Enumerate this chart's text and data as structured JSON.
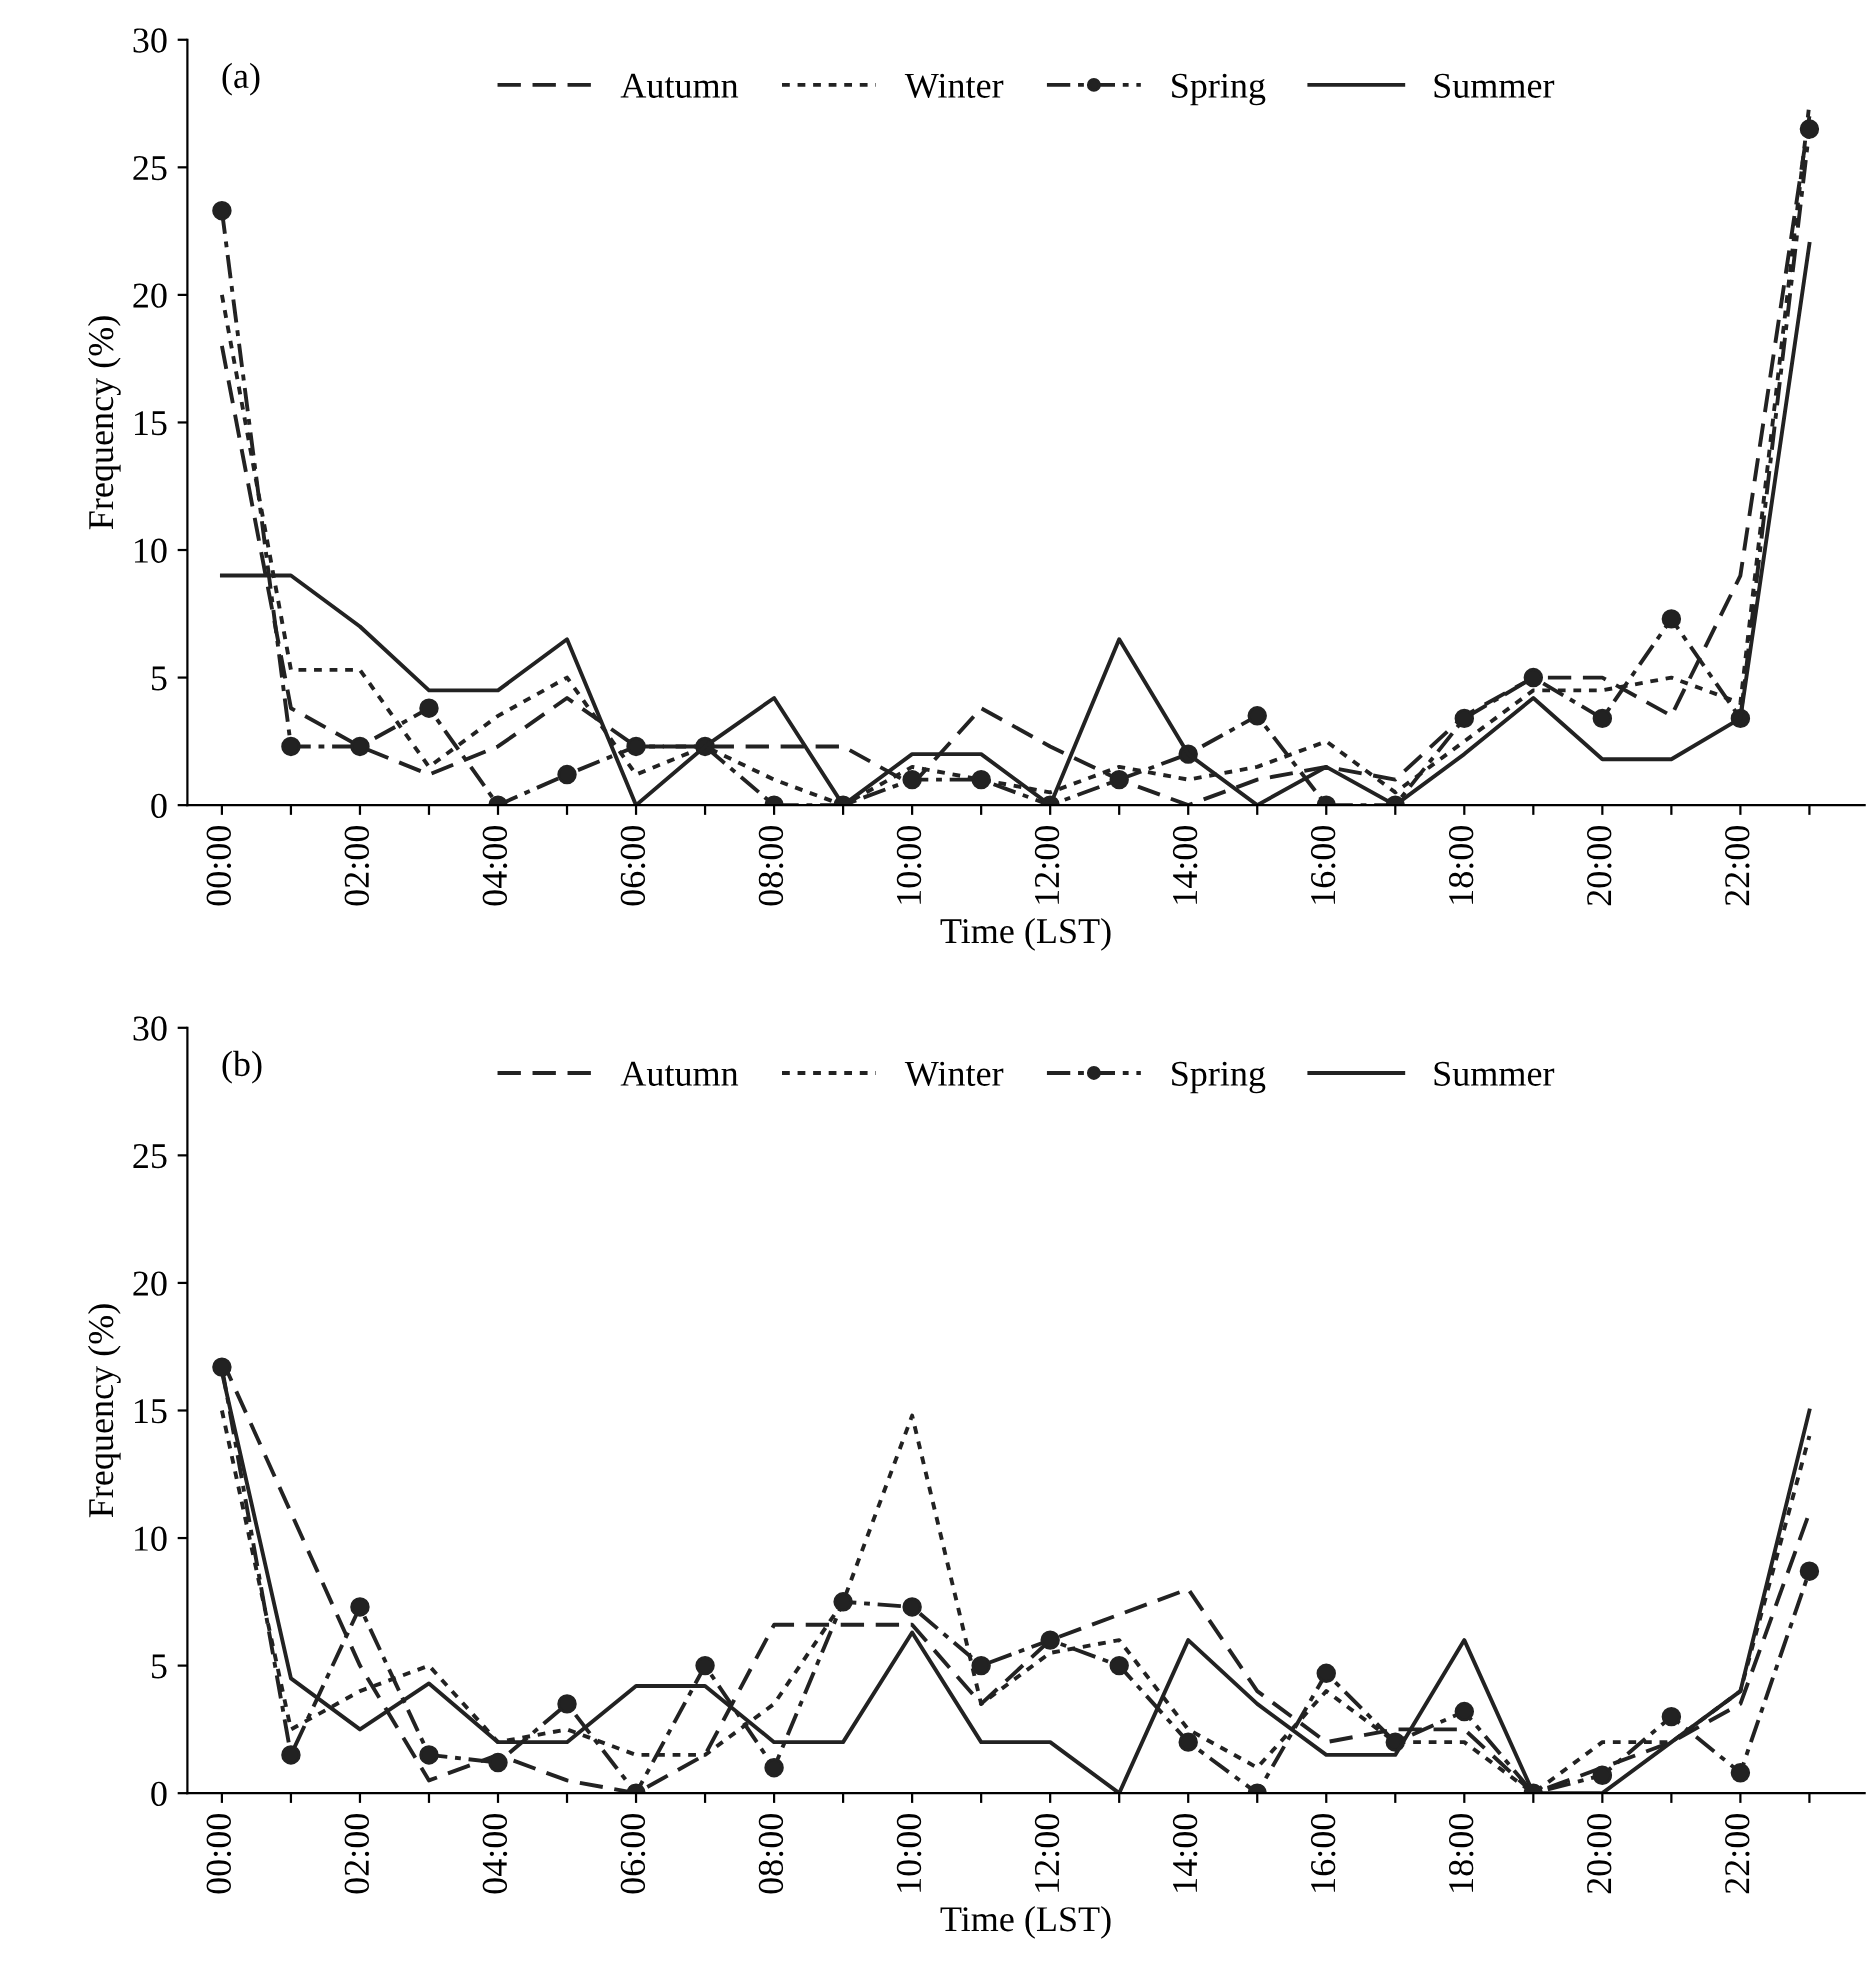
{
  "chart_data": [
    {
      "type": "line",
      "annotations": [
        "(a)"
      ],
      "xlabel": "Time (LST)",
      "ylabel": "Frequency (%)",
      "x": [
        0,
        1,
        2,
        3,
        4,
        5,
        6,
        7,
        8,
        9,
        10,
        11,
        12,
        13,
        14,
        15,
        16,
        17,
        18,
        19,
        20,
        21,
        22,
        23
      ],
      "xlim": [
        -0.5,
        23.8
      ],
      "ylim": [
        0,
        30
      ],
      "yticks": [
        0,
        5,
        10,
        15,
        20,
        25,
        30
      ],
      "xticks": [
        {
          "value": 0,
          "label": "00:00"
        },
        {
          "value": 1,
          "label": null
        },
        {
          "value": 2,
          "label": "02:00"
        },
        {
          "value": 3,
          "label": null
        },
        {
          "value": 4,
          "label": "04:00"
        },
        {
          "value": 5,
          "label": null
        },
        {
          "value": 6,
          "label": "06:00"
        },
        {
          "value": 7,
          "label": null
        },
        {
          "value": 8,
          "label": "08:00"
        },
        {
          "value": 9,
          "label": null
        },
        {
          "value": 10,
          "label": "10:00"
        },
        {
          "value": 11,
          "label": null
        },
        {
          "value": 12,
          "label": "12:00"
        },
        {
          "value": 13,
          "label": null
        },
        {
          "value": 14,
          "label": "14:00"
        },
        {
          "value": 15,
          "label": null
        },
        {
          "value": 16,
          "label": "16:00"
        },
        {
          "value": 17,
          "label": null
        },
        {
          "value": 18,
          "label": "18:00"
        },
        {
          "value": 19,
          "label": null
        },
        {
          "value": 20,
          "label": "20:00"
        },
        {
          "value": 21,
          "label": null
        },
        {
          "value": 22,
          "label": "22:00"
        },
        {
          "value": 23,
          "label": null
        }
      ],
      "grid": false,
      "legend": "top",
      "series": [
        {
          "name": "Autumn",
          "color": "#222222",
          "line_style": "dashed",
          "marker": "none",
          "values": [
            18,
            3.8,
            2.3,
            1.2,
            2.3,
            4.2,
            2.3,
            2.3,
            2.3,
            2.3,
            0.8,
            3.8,
            2.3,
            1,
            0,
            1,
            1.5,
            1,
            3.5,
            5,
            5,
            3.5,
            9,
            27
          ]
        },
        {
          "name": "Winter",
          "color": "#222222",
          "line_style": "dotted",
          "marker": "none",
          "values": [
            20,
            5.3,
            5.3,
            1.5,
            3.5,
            5,
            1.2,
            2.3,
            1,
            0,
            1.5,
            1,
            0.5,
            1.5,
            1,
            1.5,
            2.5,
            0.5,
            2.5,
            4.5,
            4.5,
            5,
            4,
            27.5
          ]
        },
        {
          "name": "Spring",
          "color": "#222222",
          "line_style": "dashdot",
          "marker": "circle",
          "values": [
            23.3,
            2.3,
            2.3,
            3.8,
            0,
            1.2,
            2.3,
            2.3,
            0,
            0,
            1,
            1,
            0,
            1,
            2,
            3.5,
            0,
            0,
            3.4,
            5,
            3.4,
            7.3,
            3.4,
            26.5
          ]
        },
        {
          "name": "Summer",
          "color": "#222222",
          "line_style": "solid",
          "marker": "none",
          "values": [
            9,
            9,
            7,
            4.5,
            4.5,
            6.5,
            0,
            2.3,
            4.2,
            0,
            2,
            2,
            0,
            6.5,
            2,
            0,
            1.5,
            0,
            2,
            4.2,
            1.8,
            1.8,
            3.4,
            22
          ]
        }
      ]
    },
    {
      "type": "line",
      "annotations": [
        "(b)"
      ],
      "xlabel": "Time (LST)",
      "ylabel": "Frequency (%)",
      "x": [
        0,
        1,
        2,
        3,
        4,
        5,
        6,
        7,
        8,
        9,
        10,
        11,
        12,
        13,
        14,
        15,
        16,
        17,
        18,
        19,
        20,
        21,
        22,
        23
      ],
      "xlim": [
        -0.5,
        23.8
      ],
      "ylim": [
        0,
        30
      ],
      "yticks": [
        0,
        5,
        10,
        15,
        20,
        25,
        30
      ],
      "xticks": [
        {
          "value": 0,
          "label": "00:00"
        },
        {
          "value": 1,
          "label": null
        },
        {
          "value": 2,
          "label": "02:00"
        },
        {
          "value": 3,
          "label": null
        },
        {
          "value": 4,
          "label": "04:00"
        },
        {
          "value": 5,
          "label": null
        },
        {
          "value": 6,
          "label": "06:00"
        },
        {
          "value": 7,
          "label": null
        },
        {
          "value": 8,
          "label": "08:00"
        },
        {
          "value": 9,
          "label": null
        },
        {
          "value": 10,
          "label": "10:00"
        },
        {
          "value": 11,
          "label": null
        },
        {
          "value": 12,
          "label": "12:00"
        },
        {
          "value": 13,
          "label": null
        },
        {
          "value": 14,
          "label": "14:00"
        },
        {
          "value": 15,
          "label": null
        },
        {
          "value": 16,
          "label": "16:00"
        },
        {
          "value": 17,
          "label": null
        },
        {
          "value": 18,
          "label": "18:00"
        },
        {
          "value": 19,
          "label": null
        },
        {
          "value": 20,
          "label": "20:00"
        },
        {
          "value": 21,
          "label": null
        },
        {
          "value": 22,
          "label": "22:00"
        },
        {
          "value": 23,
          "label": null
        }
      ],
      "grid": false,
      "legend": "top",
      "series": [
        {
          "name": "Autumn",
          "color": "#222222",
          "line_style": "dashed",
          "marker": "none",
          "values": [
            17,
            11,
            5,
            0.5,
            1.5,
            0.5,
            0,
            1.5,
            6.6,
            6.6,
            6.6,
            3.5,
            6,
            7,
            8,
            4,
            2,
            2.5,
            2.5,
            0,
            1,
            2,
            3.5,
            11
          ]
        },
        {
          "name": "Winter",
          "color": "#222222",
          "line_style": "dotted",
          "marker": "none",
          "values": [
            15,
            2.5,
            4,
            5,
            2,
            2.5,
            1.5,
            1.5,
            3.5,
            7.5,
            14.8,
            3.5,
            5.5,
            6,
            2.5,
            1,
            4,
            2,
            2,
            0,
            2,
            2,
            4,
            14
          ]
        },
        {
          "name": "Spring",
          "color": "#222222",
          "line_style": "dashdot",
          "marker": "circle",
          "values": [
            16.7,
            1.5,
            7.3,
            1.5,
            1.2,
            3.5,
            0,
            5,
            1,
            7.5,
            7.3,
            5,
            6,
            5,
            2,
            0,
            4.7,
            2,
            3.2,
            0,
            0.7,
            3,
            0.8,
            8.7
          ]
        },
        {
          "name": "Summer",
          "color": "#222222",
          "line_style": "solid",
          "marker": "none",
          "values": [
            16.5,
            4.5,
            2.5,
            4.3,
            2,
            2,
            4.2,
            4.2,
            2,
            2,
            6.3,
            2,
            2,
            0,
            6,
            3.5,
            1.5,
            1.5,
            6,
            0,
            0,
            2,
            4,
            15
          ]
        }
      ]
    }
  ]
}
